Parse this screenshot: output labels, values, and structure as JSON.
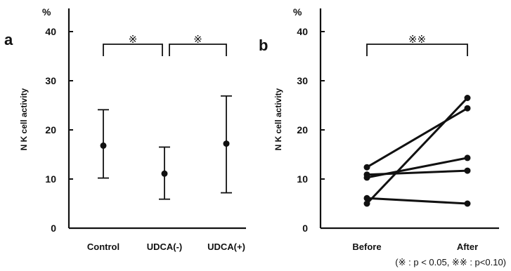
{
  "chart_data": [
    {
      "type": "errorbar",
      "panel_label": "a",
      "ylabel": "N K cell activity",
      "yunit": "%",
      "ylim": [
        0,
        45
      ],
      "yticks": [
        0,
        10,
        20,
        30,
        40
      ],
      "categories": [
        "Control",
        "UDCA(-)",
        "UDCA(+)"
      ],
      "series": [
        {
          "mean": [
            16.8,
            11.1,
            17.2
          ],
          "upper": [
            24.1,
            16.5,
            26.9
          ],
          "lower": [
            10.2,
            5.9,
            7.2
          ]
        }
      ],
      "significance": [
        {
          "from": 0,
          "to": 1,
          "label": "※"
        },
        {
          "from": 1,
          "to": 2,
          "label": "※"
        }
      ]
    },
    {
      "type": "line",
      "panel_label": "b",
      "ylabel": "N K cell activity",
      "yunit": "%",
      "ylim": [
        0,
        45
      ],
      "yticks": [
        0,
        10,
        20,
        30,
        40
      ],
      "categories": [
        "Before",
        "After"
      ],
      "series": [
        {
          "values": [
            12.4,
            24.4
          ]
        },
        {
          "values": [
            10.9,
            11.7
          ]
        },
        {
          "values": [
            10.3,
            14.3
          ]
        },
        {
          "values": [
            6.1,
            5.0
          ]
        },
        {
          "values": [
            5.0,
            26.5
          ]
        }
      ],
      "significance": [
        {
          "from": 0,
          "to": 1,
          "label": "※※"
        }
      ]
    }
  ],
  "footnote": "(※ : p < 0.05, ※※ : p<0.10)"
}
